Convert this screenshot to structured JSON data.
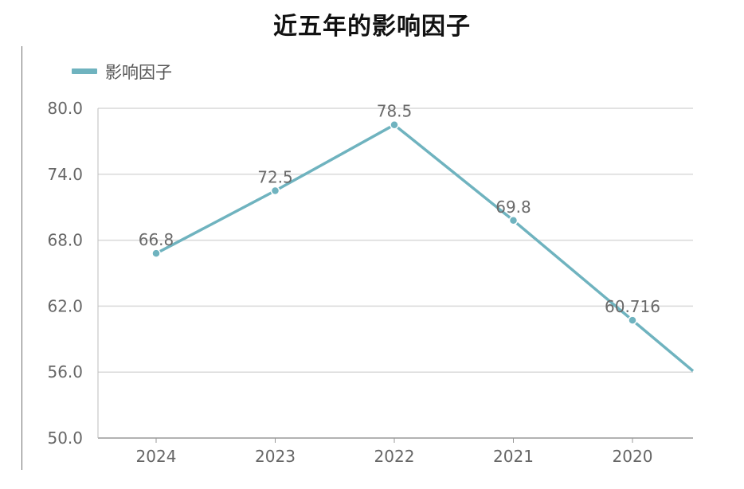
{
  "chart_data": {
    "type": "line",
    "title": "近五年的影响因子",
    "categories": [
      "2024",
      "2023",
      "2022",
      "2021",
      "2020"
    ],
    "series": [
      {
        "name": "影响因子",
        "values": [
          66.8,
          72.5,
          78.5,
          69.8,
          60.716
        ],
        "value_labels": [
          "66.8",
          "72.5",
          "78.5",
          "69.8",
          "60.716"
        ],
        "color": "#6fb3bf",
        "continues_beyond_last": true
      }
    ],
    "ylim": [
      50,
      80
    ],
    "yticks": [
      "50.0",
      "56.0",
      "62.0",
      "68.0",
      "74.0",
      "80.0"
    ],
    "grid": true,
    "legend": "top-left"
  }
}
